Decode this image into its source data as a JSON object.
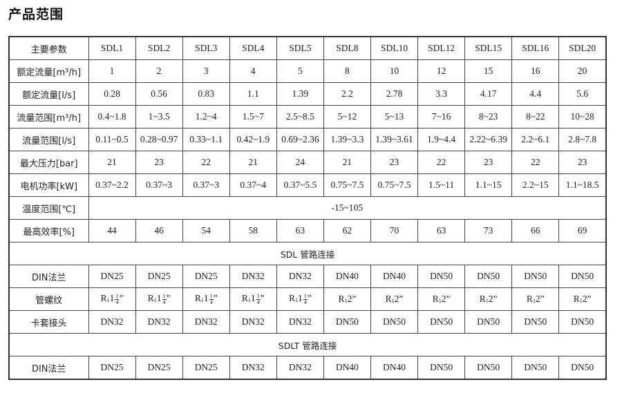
{
  "title": "产品范围",
  "table": {
    "header_label": "主要参数",
    "models": [
      "SDL1",
      "SDL2",
      "SDL3",
      "SDL4",
      "SDL5",
      "SDL8",
      "SDL10",
      "SDL12",
      "SDL15",
      "SDL16",
      "SDL20"
    ],
    "rows": [
      {
        "label": "额定流量[m³/h]",
        "values": [
          "1",
          "2",
          "3",
          "4",
          "5",
          "8",
          "10",
          "12",
          "15",
          "16",
          "20"
        ]
      },
      {
        "label": "额定流量[l/s]",
        "values": [
          "0.28",
          "0.56",
          "0.83",
          "1.1",
          "1.39",
          "2.2",
          "2.78",
          "3.3",
          "4.17",
          "4.4",
          "5.6"
        ]
      },
      {
        "label": "流量范围[m³/h]",
        "values": [
          "0.4~1.8",
          "1~3.5",
          "1.2~4",
          "1.5~7",
          "2.5~8.5",
          "5~12",
          "5~13",
          "7~16",
          "8~23",
          "8~22",
          "10~28"
        ]
      },
      {
        "label": "流量范围[l/s]",
        "values": [
          "0.11~0.5",
          "0.28~0.97",
          "0.33~1.1",
          "0.42~1.9",
          "0.69~2.36",
          "1.39~3.3",
          "1.39~3.61",
          "1.9~4.4",
          "2.22~6.39",
          "2.2~6.1",
          "2.8~7.8"
        ]
      },
      {
        "label": "最大压力[bar]",
        "values": [
          "21",
          "23",
          "22",
          "21",
          "24",
          "21",
          "23",
          "22",
          "23",
          "22",
          "23"
        ]
      },
      {
        "label": "电机功率[kW]",
        "values": [
          "0.37~2.2",
          "0.37~3",
          "0.37~3",
          "0.37~4",
          "0.37~5.5",
          "0.75~7.5",
          "0.75~7.5",
          "1.5~11",
          "1.1~15",
          "2.2~15",
          "1.1~18.5"
        ]
      },
      {
        "label": "温度范围[℃]",
        "span": "-15~105"
      },
      {
        "label": "最高效率[%]",
        "values": [
          "44",
          "46",
          "54",
          "58",
          "63",
          "62",
          "70",
          "63",
          "73",
          "66",
          "69"
        ]
      },
      {
        "section": "SDL 管路连接"
      },
      {
        "label": "DIN法兰",
        "values": [
          "DN25",
          "DN25",
          "DN25",
          "DN32",
          "DN32",
          "DN40",
          "DN40",
          "DN50",
          "DN50",
          "DN50",
          "DN50"
        ]
      },
      {
        "label": "管螺纹",
        "threads": [
          {
            "r": "R",
            "sub": "1",
            "whole": "1",
            "num": "1",
            "den": "4",
            "mark": "”"
          },
          {
            "r": "R",
            "sub": "1",
            "whole": "1",
            "num": "1",
            "den": "4",
            "mark": "”"
          },
          {
            "r": "R",
            "sub": "1",
            "whole": "1",
            "num": "1",
            "den": "4",
            "mark": "”"
          },
          {
            "r": "R",
            "sub": "1",
            "whole": "1",
            "num": "1",
            "den": "4",
            "mark": "”"
          },
          {
            "r": "R",
            "sub": "1",
            "whole": "1",
            "num": "1",
            "den": "4",
            "mark": "”"
          },
          {
            "r": "R",
            "sub": "1",
            "whole": "2",
            "mark": "”"
          },
          {
            "r": "R",
            "sub": "1",
            "whole": "2",
            "mark": "”"
          },
          {
            "r": "R",
            "sub": "1",
            "whole": "2",
            "mark": "”"
          },
          {
            "r": "R",
            "sub": "1",
            "whole": "2",
            "mark": "”"
          },
          {
            "r": "R",
            "sub": "1",
            "whole": "2",
            "mark": "”"
          },
          {
            "r": "R",
            "sub": "1",
            "whole": "2",
            "mark": "”"
          }
        ]
      },
      {
        "label": "卡套接头",
        "values": [
          "DN32",
          "DN32",
          "DN32",
          "DN32",
          "DN32",
          "DN50",
          "DN50",
          "DN50",
          "DN50",
          "DN50",
          "DN50"
        ]
      },
      {
        "section": "SDLT 管路连接"
      },
      {
        "label": "DIN法兰",
        "values": [
          "DN25",
          "DN25",
          "DN25",
          "DN32",
          "DN32",
          "DN40",
          "DN40",
          "DN50",
          "DN50",
          "DN50",
          "DN50"
        ]
      }
    ]
  }
}
